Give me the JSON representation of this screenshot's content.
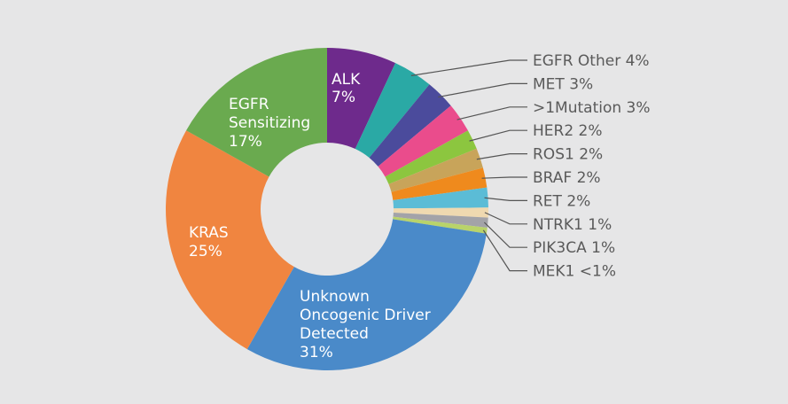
{
  "chart_data": {
    "type": "pie",
    "donut": true,
    "title": "",
    "background": "#e6e6e7",
    "slices": [
      {
        "key": "alk",
        "label_lines": [
          "ALK",
          "7%"
        ],
        "value": 7,
        "color": "#6e2a8c"
      },
      {
        "key": "egfr-other",
        "label_lines": [
          "EGFR Other 4%"
        ],
        "value": 4,
        "color": "#2aa9a5"
      },
      {
        "key": "met",
        "label_lines": [
          "MET 3%"
        ],
        "value": 3,
        "color": "#4b4b9c"
      },
      {
        "key": "mutation",
        "label_lines": [
          ">1Mutation 3%"
        ],
        "value": 3,
        "color": "#ea4c8c"
      },
      {
        "key": "her2",
        "label_lines": [
          "HER2 2%"
        ],
        "value": 2,
        "color": "#8cc63f"
      },
      {
        "key": "ros1",
        "label_lines": [
          "ROS1 2%"
        ],
        "value": 2,
        "color": "#c8a45a"
      },
      {
        "key": "braf",
        "label_lines": [
          "BRAF 2%"
        ],
        "value": 2,
        "color": "#ef8a1d"
      },
      {
        "key": "ret",
        "label_lines": [
          "RET 2%"
        ],
        "value": 2,
        "color": "#5bbcd6"
      },
      {
        "key": "ntrk1",
        "label_lines": [
          "NTRK1 1%"
        ],
        "value": 1,
        "color": "#efd9b0"
      },
      {
        "key": "pik3ca",
        "label_lines": [
          "PIK3CA 1%"
        ],
        "value": 1,
        "color": "#a3a3a8"
      },
      {
        "key": "mek1",
        "label_lines": [
          "MEK1 <1%"
        ],
        "value": 0.6,
        "color": "#b9d36a"
      },
      {
        "key": "unknown",
        "label_lines": [
          "Unknown",
          "Oncogenic Driver",
          "Detected",
          "31%"
        ],
        "value": 31,
        "color": "#4a8ac9"
      },
      {
        "key": "kras",
        "label_lines": [
          "KRAS",
          "25%"
        ],
        "value": 25,
        "color": "#f08540"
      },
      {
        "key": "egfr-sensitizing",
        "label_lines": [
          "EGFR",
          "Sensitizing",
          "17%"
        ],
        "value": 17,
        "color": "#6aaa4f"
      }
    ]
  }
}
